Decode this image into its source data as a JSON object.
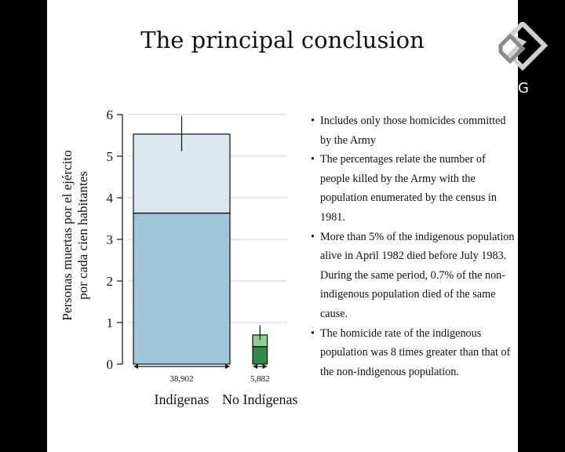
{
  "slide": {
    "title": "The principal conclusion",
    "logo_letter": "G"
  },
  "bullets": [
    "Includes only those homicides committed by the Army",
    "The percentages relate the number of people killed by the Army with the population enumerated by the census in 1981.",
    "More than 5% of the indigenous population alive in April 1982 died before July 1983. During the same period, 0.7% of the non-indigenous population died of the same cause.",
    "The homicide rate of the indigenous population was 8 times greater than that of the non-indigenous population."
  ],
  "chart_data": {
    "type": "bar",
    "ylabel_line1": "Personas muertas por el ejército",
    "ylabel_line2": "por cada cien habitantes",
    "ylim": [
      0,
      6
    ],
    "yticks": [
      "0",
      "1",
      "2",
      "3",
      "4",
      "5",
      "6"
    ],
    "grid": true,
    "categories": [
      "Indígenas",
      "No Indígenas"
    ],
    "width_labels": [
      "38,902",
      "5,882"
    ],
    "widths": [
      38902,
      5882
    ],
    "series": [
      {
        "values": [
          3.63,
          0.42
        ],
        "color": "#9ec8d9"
      },
      {
        "values": [
          1.9,
          0.28
        ],
        "color": "#dde8ee"
      }
    ],
    "second_series_colors": [
      "#2e8b4a",
      "#8fcf8f"
    ],
    "totals": [
      5.53,
      0.7
    ],
    "error_high": [
      5.97,
      0.93
    ],
    "error_low": [
      5.12,
      0.58
    ]
  },
  "colors": {
    "background": "#000000",
    "slide": "#ffffff",
    "grid": "#cfcfcf"
  }
}
